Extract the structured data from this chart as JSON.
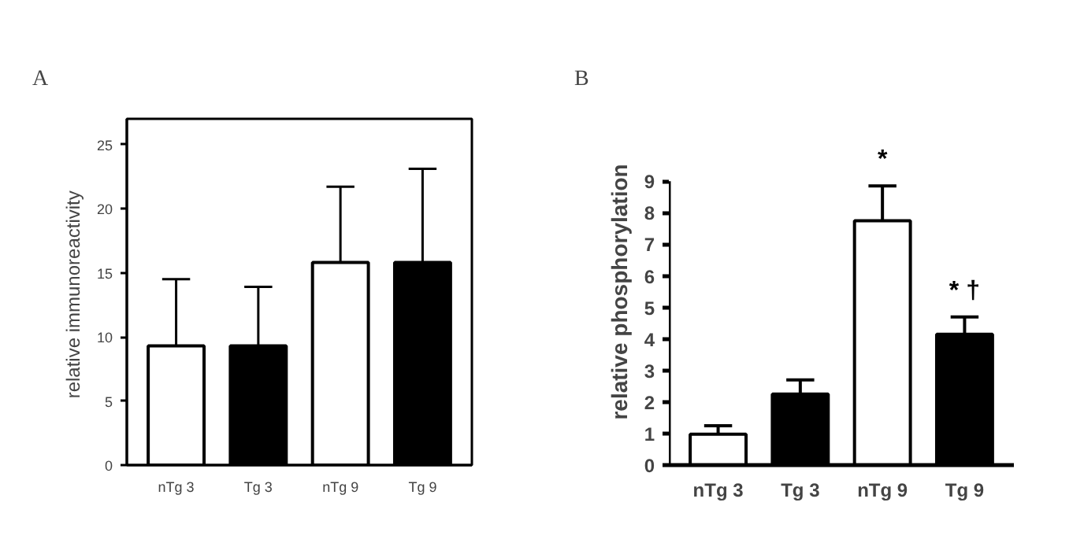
{
  "chart_data": [
    {
      "type": "bar",
      "title": "A",
      "ylabel": "relative  immunoreactivity",
      "categories": [
        "nTg 3",
        "Tg 3",
        "nTg 9",
        "Tg 9"
      ],
      "values": [
        9.3,
        9.3,
        15.8,
        15.8
      ],
      "colors": [
        "#ffffff",
        "#000000",
        "#ffffff",
        "#000000"
      ],
      "errors": [
        [
          9.3,
          14.5
        ],
        [
          9.3,
          13.9
        ],
        [
          15.8,
          21.7
        ],
        [
          15.8,
          23.1
        ]
      ],
      "ylim": [
        0,
        27
      ],
      "yticks": [
        0,
        5,
        10,
        15,
        20,
        25
      ],
      "grid": false
    },
    {
      "type": "bar",
      "title": "B",
      "ylabel": "relative phosphorylation",
      "categories": [
        "nTg 3",
        "Tg 3",
        "nTg 9",
        "Tg 9"
      ],
      "values": [
        0.98,
        2.25,
        7.75,
        4.15
      ],
      "colors": [
        "#ffffff",
        "#000000",
        "#ffffff",
        "#000000"
      ],
      "errors": [
        [
          0.98,
          1.25
        ],
        [
          2.25,
          2.7
        ],
        [
          7.75,
          8.85
        ],
        [
          4.15,
          4.7
        ]
      ],
      "ylim": [
        0,
        9
      ],
      "yticks": [
        0,
        1,
        2,
        3,
        4,
        5,
        6,
        7,
        8,
        9
      ],
      "grid": false,
      "annotations": [
        "*",
        "* †"
      ]
    }
  ]
}
